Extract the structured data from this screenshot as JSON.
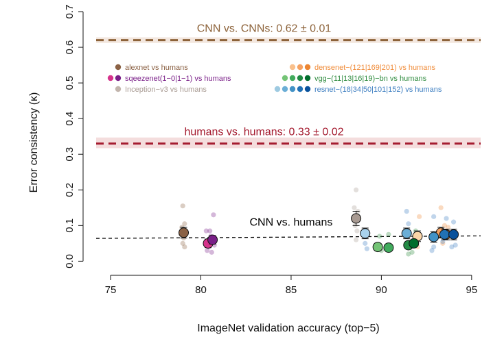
{
  "chart_data": {
    "type": "scatter",
    "xlabel": "ImageNet validation accuracy (top−5)",
    "ylabel": "Error consistency (κ)",
    "xlim": [
      74.2,
      95.5
    ],
    "ylim": [
      -0.005,
      0.7
    ],
    "xticks": [
      75,
      80,
      85,
      90,
      95
    ],
    "xtick_labels": [
      "75",
      "80",
      "85",
      "90",
      "95"
    ],
    "yticks": [
      0.0,
      0.1,
      0.2,
      0.3,
      0.4,
      0.5,
      0.6,
      0.7
    ],
    "ytick_labels": [
      "0.0",
      "0.1",
      "0.2",
      "0.3",
      "0.4",
      "0.5",
      "0.6",
      "0.7"
    ],
    "reference_lines": [
      {
        "name": "cnn-vs-cnns",
        "label": "CNN vs. CNNs: 0.62 ± 0.01",
        "value": 0.62,
        "band": [
          0.612,
          0.628
        ],
        "color": "#8c6239",
        "band_color": "#f3e7df"
      },
      {
        "name": "humans-vs-humans",
        "label": "humans vs. humans: 0.33 ± 0.02",
        "value": 0.33,
        "band": [
          0.317,
          0.347
        ],
        "color": "#a51c30",
        "band_color": "#f4dddd"
      },
      {
        "name": "cnn-vs-humans",
        "label": "CNN vs. humans",
        "value": 0.065,
        "color": "#000000"
      }
    ],
    "regression_line": {
      "x": [
        74.2,
        95.5
      ],
      "y": [
        0.064,
        0.071
      ]
    },
    "series": [
      {
        "name": "alexnet vs humans",
        "color": "#8b6245",
        "legend_colors": [
          "#8b6245"
        ],
        "points": [
          {
            "x": 79.05,
            "y": 0.08,
            "err": 0.015
          }
        ],
        "scatter": [
          {
            "x": 79.0,
            "y": 0.155
          },
          {
            "x": 79.1,
            "y": 0.105
          },
          {
            "x": 78.95,
            "y": 0.095
          },
          {
            "x": 79.05,
            "y": 0.065
          },
          {
            "x": 79.0,
            "y": 0.05
          },
          {
            "x": 79.1,
            "y": 0.04
          },
          {
            "x": 78.9,
            "y": 0.075
          }
        ]
      },
      {
        "name": "sqeezenet(1−0|1−1) vs humans",
        "color": "#7a1f88",
        "legend_colors": [
          "#d6338c",
          "#7a1f88"
        ],
        "points": [
          {
            "x": 80.4,
            "y": 0.05,
            "err": 0.012,
            "color": "#d6338c"
          },
          {
            "x": 80.65,
            "y": 0.06,
            "err": 0.012,
            "color": "#7a1f88"
          }
        ],
        "scatter": [
          {
            "x": 80.3,
            "y": 0.085
          },
          {
            "x": 80.5,
            "y": 0.085
          },
          {
            "x": 80.7,
            "y": 0.13
          },
          {
            "x": 80.35,
            "y": 0.03
          },
          {
            "x": 80.6,
            "y": 0.025
          },
          {
            "x": 80.45,
            "y": 0.04
          },
          {
            "x": 80.75,
            "y": 0.045
          },
          {
            "x": 80.55,
            "y": 0.07
          }
        ]
      },
      {
        "name": "Inception−v3 vs humans",
        "color": "#a89a92",
        "legend_colors": [
          "#c2b5ad"
        ],
        "points": [
          {
            "x": 88.6,
            "y": 0.12,
            "err": 0.02
          }
        ],
        "scatter": [
          {
            "x": 88.6,
            "y": 0.2
          },
          {
            "x": 88.5,
            "y": 0.15
          },
          {
            "x": 88.7,
            "y": 0.14
          },
          {
            "x": 88.55,
            "y": 0.1
          },
          {
            "x": 88.65,
            "y": 0.085
          },
          {
            "x": 88.6,
            "y": 0.06
          }
        ]
      },
      {
        "name": "densenet−(121|169|201) vs humans",
        "color": "#f08c3a",
        "legend_colors": [
          "#f9c08c",
          "#f5a262",
          "#ec8531"
        ],
        "points": [
          {
            "x": 92.0,
            "y": 0.07,
            "err": 0.015,
            "color": "#fcd5a8"
          },
          {
            "x": 93.3,
            "y": 0.08,
            "err": 0.015,
            "color": "#f5a262"
          },
          {
            "x": 93.6,
            "y": 0.075,
            "err": 0.015,
            "color": "#ec8531"
          }
        ],
        "scatter": [
          {
            "x": 93.3,
            "y": 0.15
          },
          {
            "x": 92.1,
            "y": 0.125
          },
          {
            "x": 93.5,
            "y": 0.1
          },
          {
            "x": 93.7,
            "y": 0.095
          },
          {
            "x": 92.0,
            "y": 0.04
          },
          {
            "x": 93.4,
            "y": 0.05
          }
        ]
      },
      {
        "name": "vgg−(11|13|16|19)−bn vs humans",
        "color": "#2e8b3e",
        "legend_colors": [
          "#74c476",
          "#41ab5d",
          "#238b45",
          "#006d2c"
        ],
        "points": [
          {
            "x": 89.8,
            "y": 0.04,
            "err": 0.01,
            "color": "#74c476"
          },
          {
            "x": 90.4,
            "y": 0.038,
            "err": 0.01,
            "color": "#41ab5d"
          },
          {
            "x": 91.5,
            "y": 0.045,
            "err": 0.01,
            "color": "#238b45"
          },
          {
            "x": 91.8,
            "y": 0.05,
            "err": 0.01,
            "color": "#006d2c"
          }
        ],
        "scatter": [
          {
            "x": 89.9,
            "y": 0.07
          },
          {
            "x": 90.4,
            "y": 0.075
          },
          {
            "x": 91.5,
            "y": 0.08
          },
          {
            "x": 91.9,
            "y": 0.085
          },
          {
            "x": 91.5,
            "y": 0.02
          },
          {
            "x": 91.7,
            "y": 0.025
          },
          {
            "x": 90.0,
            "y": 0.03
          }
        ]
      },
      {
        "name": "resnet−(18|34|50|101|152) vs humans",
        "color": "#3a7cc0",
        "legend_colors": [
          "#9ecae1",
          "#6baed6",
          "#4292c6",
          "#2171b5",
          "#08519c"
        ],
        "points": [
          {
            "x": 89.1,
            "y": 0.078,
            "err": 0.015,
            "color": "#a9d2ec"
          },
          {
            "x": 91.4,
            "y": 0.078,
            "err": 0.015,
            "color": "#6baed6"
          },
          {
            "x": 92.9,
            "y": 0.068,
            "err": 0.015,
            "color": "#4292c6"
          },
          {
            "x": 93.5,
            "y": 0.075,
            "err": 0.015,
            "color": "#2171b5"
          },
          {
            "x": 94.0,
            "y": 0.075,
            "err": 0.015,
            "color": "#08519c"
          }
        ],
        "scatter": [
          {
            "x": 89.1,
            "y": 0.05
          },
          {
            "x": 89.2,
            "y": 0.035
          },
          {
            "x": 91.4,
            "y": 0.14
          },
          {
            "x": 91.5,
            "y": 0.105
          },
          {
            "x": 92.9,
            "y": 0.125
          },
          {
            "x": 93.6,
            "y": 0.12
          },
          {
            "x": 94.0,
            "y": 0.11
          },
          {
            "x": 92.8,
            "y": 0.03
          },
          {
            "x": 93.9,
            "y": 0.04
          },
          {
            "x": 94.1,
            "y": 0.045
          },
          {
            "x": 93.4,
            "y": 0.055
          },
          {
            "x": 92.9,
            "y": 0.04
          }
        ]
      }
    ]
  }
}
